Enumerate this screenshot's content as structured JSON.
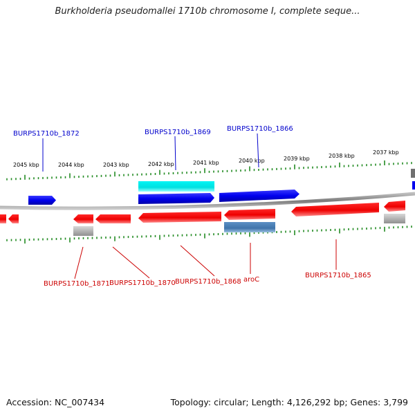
{
  "title": "Burkholderia pseudomallei 1710b chromosome I, complete seque...",
  "footer": {
    "accession": "Accession: NC_007434",
    "summary": "Topology: circular; Length: 4,126,292 bp; Genes: 3,799"
  },
  "colors": {
    "forward_gene": "#0000ee",
    "reverse_gene": "#ee0000",
    "cyan_feature": "#00e6e6",
    "steelblue_feature": "#4a7fb5",
    "gray_feature": "#a8a8a8",
    "backbone": "#8a8a8a",
    "tick": "#228b22",
    "forward_label": "#0000cc",
    "reverse_label": "#cc0000"
  },
  "scale_ticks": [
    "2045 kbp",
    "2044 kbp",
    "2043 kbp",
    "2042 kbp",
    "2041 kbp",
    "2040 kbp",
    "2039 kbp",
    "2038 kbp",
    "2037 kbp"
  ],
  "forward_labels": [
    "BURPS1710b_1872",
    "BURPS1710b_1869",
    "BURPS1710b_1866"
  ],
  "reverse_labels": [
    "BURPS1710b_1871",
    "BURPS1710b_1870",
    "BURPS1710b_1868",
    "aroC",
    "BURPS1710b_1865"
  ]
}
